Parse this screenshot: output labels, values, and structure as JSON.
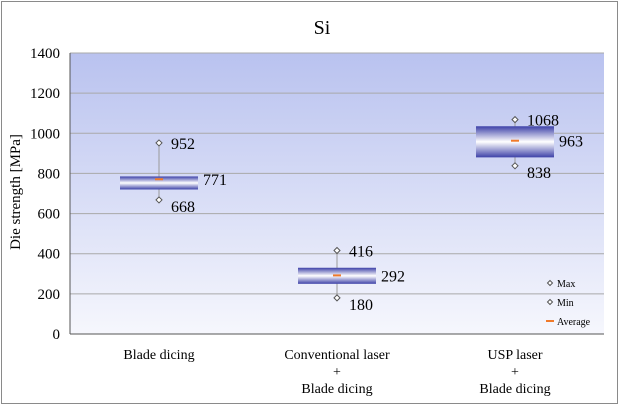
{
  "chart_data": {
    "type": "box",
    "title": "Si",
    "ylabel": "Die strength [MPa]",
    "xlabel": "",
    "ylim": [
      0,
      1400
    ],
    "yticks": [
      0,
      200,
      400,
      600,
      800,
      1000,
      1200,
      1400
    ],
    "grid": true,
    "legend_position": "bottom-right",
    "categories": [
      [
        "Blade dicing"
      ],
      [
        "Conventional laser",
        "+",
        "Blade dicing"
      ],
      [
        "USP laser",
        "+",
        "Blade dicing"
      ]
    ],
    "series": [
      {
        "category": "Blade dicing",
        "max": 952,
        "min": 668,
        "average": 771,
        "box_low": 720,
        "box_high": 785
      },
      {
        "category": "Conventional laser + Blade dicing",
        "max": 416,
        "min": 180,
        "average": 292,
        "box_low": 250,
        "box_high": 330
      },
      {
        "category": "USP laser + Blade dicing",
        "max": 1068,
        "min": 838,
        "average": 963,
        "box_low": 880,
        "box_high": 1035
      }
    ],
    "data_labels": [
      {
        "series": 0,
        "kind": "max",
        "text": "952"
      },
      {
        "series": 0,
        "kind": "avg",
        "text": "771"
      },
      {
        "series": 0,
        "kind": "min",
        "text": "668"
      },
      {
        "series": 1,
        "kind": "max",
        "text": "416"
      },
      {
        "series": 1,
        "kind": "avg",
        "text": "292"
      },
      {
        "series": 1,
        "kind": "min",
        "text": "180"
      },
      {
        "series": 2,
        "kind": "max",
        "text": "1068"
      },
      {
        "series": 2,
        "kind": "avg",
        "text": "963"
      },
      {
        "series": 2,
        "kind": "min",
        "text": "838"
      }
    ],
    "legend": [
      {
        "marker": "diamond",
        "label": "Max"
      },
      {
        "marker": "diamond",
        "label": "Min"
      },
      {
        "marker": "dash",
        "label": "Average"
      }
    ],
    "colors": {
      "background_top": "#b9c2ef",
      "background_bottom": "#f6f7fd",
      "box_edge": "#3d41a8",
      "box_center": "#ffffff",
      "average": "#f07a2a",
      "grid": "#a9a9a9"
    }
  }
}
